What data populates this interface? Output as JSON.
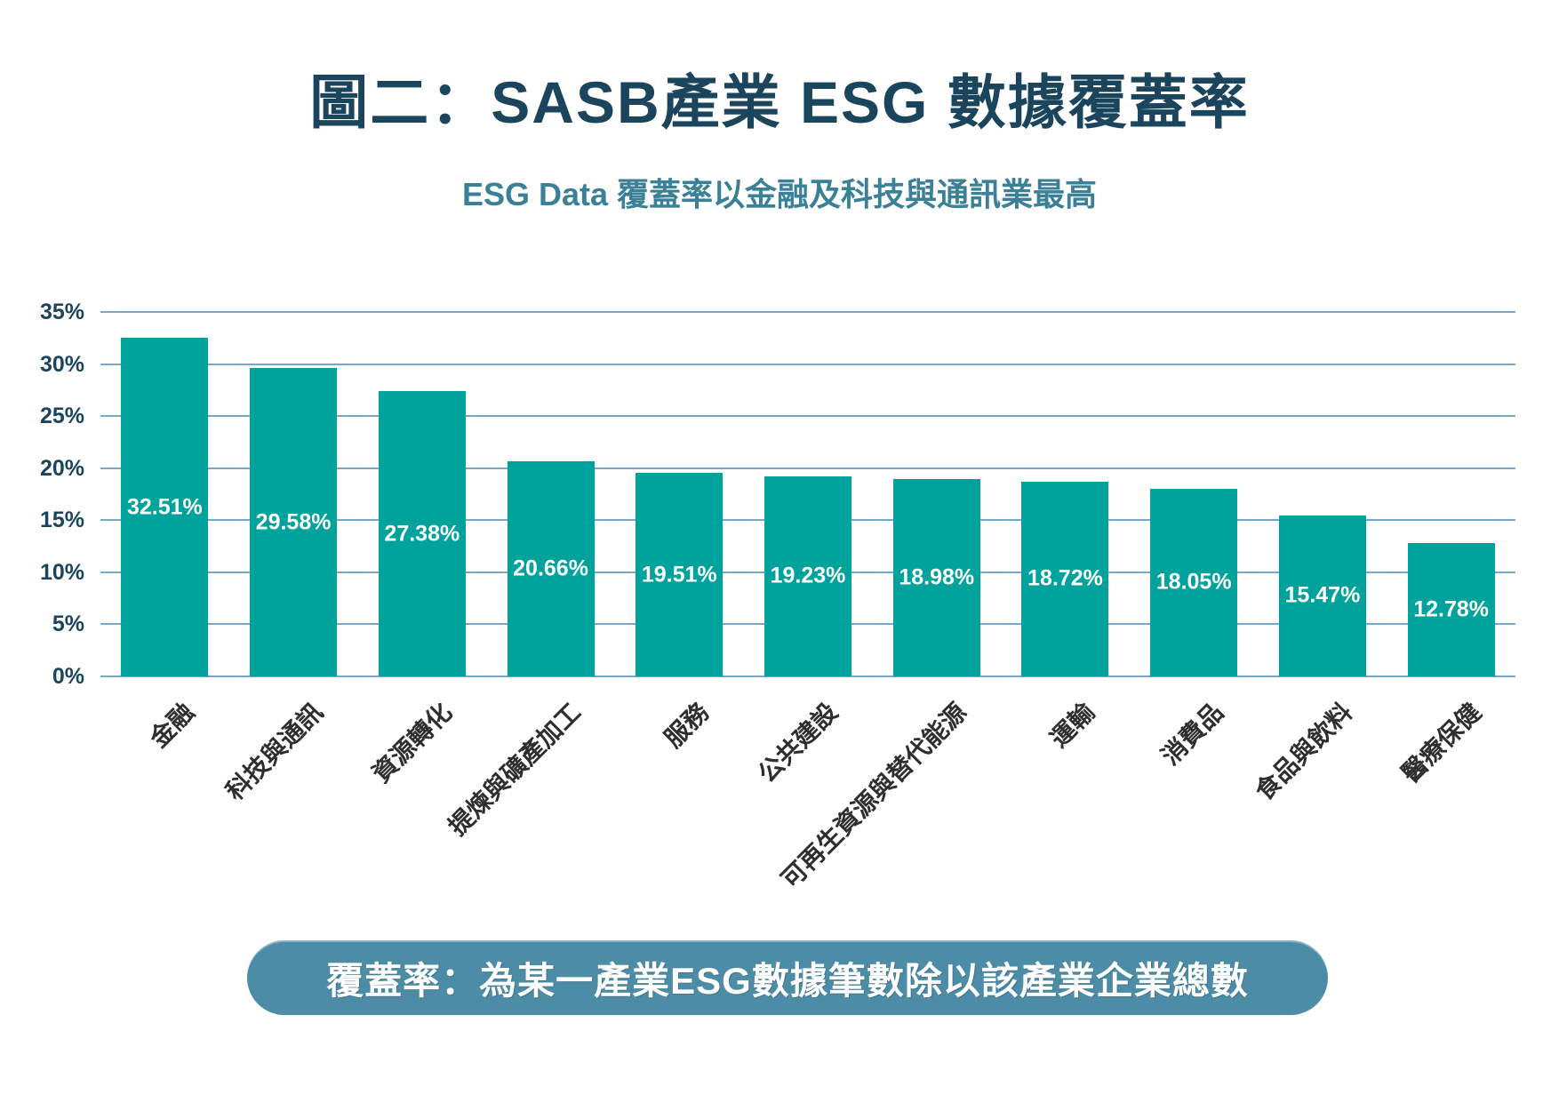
{
  "header": {
    "title": "圖二：SASB產業 ESG 數據覆蓋率",
    "subtitle": "ESG Data 覆蓋率以金融及科技與通訊業最高"
  },
  "chart_data": {
    "type": "bar",
    "title": "圖二：SASB產業 ESG 數據覆蓋率",
    "subtitle": "ESG Data 覆蓋率以金融及科技與通訊業最高",
    "categories": [
      "金融",
      "科技與通訊",
      "資源轉化",
      "提煉與礦產加工",
      "服務",
      "公共建設",
      "可再生資源與替代能源",
      "運輸",
      "消費品",
      "食品與飲料",
      "醫療保健"
    ],
    "values": [
      32.51,
      29.58,
      27.38,
      20.66,
      19.51,
      19.23,
      18.98,
      18.72,
      18.05,
      15.47,
      12.78
    ],
    "value_labels": [
      "32.51%",
      "29.58%",
      "27.38%",
      "20.66%",
      "19.51%",
      "19.23%",
      "18.98%",
      "18.72%",
      "18.05%",
      "15.47%",
      "12.78%"
    ],
    "xlabel": "",
    "ylabel": "",
    "ylim": [
      0,
      35
    ],
    "yticks": [
      "0%",
      "5%",
      "10%",
      "15%",
      "20%",
      "25%",
      "30%",
      "35%"
    ],
    "grid": true,
    "legend": false,
    "bar_color": "#00a29c",
    "value_label_color": "#ffffff"
  },
  "footnote": {
    "text": "覆蓋率：為某一產業ESG數據筆數除以該產業企業總數"
  },
  "colors": {
    "title": "#1a455c",
    "subtitle": "#3a8096",
    "gridline": "#7aa6c8",
    "bar": "#00a29c",
    "y_tick_label": "#1a455c",
    "x_tick_label": "#2e2e2e",
    "note_background": "#4c8ca6",
    "note_text": "#ffffff"
  }
}
